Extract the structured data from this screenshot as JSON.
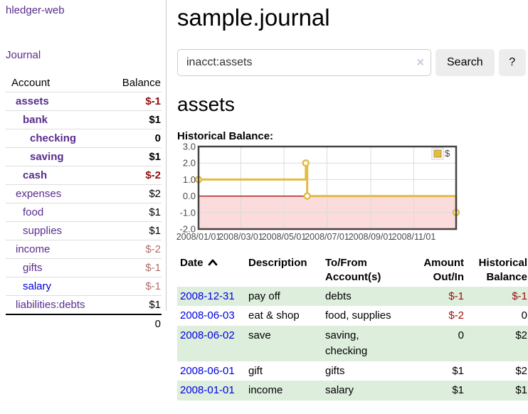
{
  "app": {
    "brand": "hledger-web",
    "nav_journal": "Journal"
  },
  "sidebar": {
    "headers": {
      "account": "Account",
      "balance": "Balance"
    },
    "accounts": [
      {
        "name": "assets",
        "indent": 1,
        "bold": true,
        "balance": "$-1",
        "balance_class": "neg-strong",
        "link_class": "purple"
      },
      {
        "name": "bank",
        "indent": 2,
        "bold": true,
        "balance": "$1",
        "balance_class": "",
        "link_class": "purple"
      },
      {
        "name": "checking",
        "indent": 3,
        "bold": true,
        "balance": "0",
        "balance_class": "",
        "link_class": "purple"
      },
      {
        "name": "saving",
        "indent": 3,
        "bold": true,
        "balance": "$1",
        "balance_class": "",
        "link_class": "purple"
      },
      {
        "name": "cash",
        "indent": 2,
        "bold": true,
        "balance": "$-2",
        "balance_class": "neg-strong",
        "link_class": "purple"
      },
      {
        "name": "expenses",
        "indent": 1,
        "bold": false,
        "balance": "$2",
        "balance_class": "",
        "link_class": "purple"
      },
      {
        "name": "food",
        "indent": 2,
        "bold": false,
        "balance": "$1",
        "balance_class": "",
        "link_class": "purple"
      },
      {
        "name": "supplies",
        "indent": 2,
        "bold": false,
        "balance": "$1",
        "balance_class": "",
        "link_class": "purple"
      },
      {
        "name": "income",
        "indent": 1,
        "bold": false,
        "balance": "$-2",
        "balance_class": "neg-muted",
        "link_class": "purple"
      },
      {
        "name": "gifts",
        "indent": 2,
        "bold": false,
        "balance": "$-1",
        "balance_class": "neg-muted",
        "link_class": "purple"
      },
      {
        "name": "salary",
        "indent": 2,
        "bold": false,
        "balance": "$-1",
        "balance_class": "neg-muted",
        "link_class": "blue"
      },
      {
        "name": "liabilities:debts",
        "indent": 1,
        "bold": false,
        "balance": "$1",
        "balance_class": "",
        "link_class": "purple"
      }
    ],
    "total": "0"
  },
  "header": {
    "title": "sample.journal"
  },
  "search": {
    "value": "inacct:assets",
    "clear_glyph": "×",
    "button_label": "Search",
    "help_label": "?"
  },
  "account_page": {
    "heading": "assets",
    "chart_label": "Historical Balance:"
  },
  "chart_data": {
    "type": "line",
    "step": true,
    "title": "Historical Balance",
    "series": [
      {
        "name": "$",
        "color": "#e3bc45",
        "points": [
          [
            "2008-01-01",
            1
          ],
          [
            "2008-06-01",
            2
          ],
          [
            "2008-06-03",
            0
          ],
          [
            "2008-12-31",
            -1
          ]
        ]
      }
    ],
    "ylim": [
      -2,
      3
    ],
    "ytick_values": [
      3,
      2,
      1,
      0,
      -1,
      -2
    ],
    "ytick_labels": [
      "3.0",
      "2.0",
      "1.0",
      "0.0",
      "-1.0",
      "-2.0"
    ],
    "xtick_labels": [
      "2008/01/01",
      "2008/03/01",
      "2008/05/01",
      "2008/07/01",
      "2008/09/01",
      "2008/11/01"
    ],
    "x_range": [
      "2008-01-01",
      "2008-12-31"
    ],
    "legend": {
      "label": "$",
      "position": "top-right"
    },
    "grid": true,
    "colors": {
      "negative_region": "#fbdbdb",
      "zero_line": "#a00000",
      "grid": "#dcdcdc",
      "border": "#444444",
      "tick_text": "#4a4a4a",
      "marker_fill": "#ffffff"
    }
  },
  "register": {
    "headers": {
      "date": "Date",
      "description": "Description",
      "accounts": "To/From Account(s)",
      "amount": "Amount Out/In",
      "balance": "Historical Balance"
    },
    "sort": {
      "column": "date",
      "direction": "asc"
    },
    "rows": [
      {
        "date": "2008-12-31",
        "description": "pay off",
        "accounts": "debts",
        "amount": "$-1",
        "amount_neg": true,
        "balance": "$-1",
        "balance_neg": true
      },
      {
        "date": "2008-06-03",
        "description": "eat & shop",
        "accounts": "food, supplies",
        "amount": "$-2",
        "amount_neg": true,
        "balance": "0",
        "balance_neg": false
      },
      {
        "date": "2008-06-02",
        "description": "save",
        "accounts": "saving, checking",
        "amount": "0",
        "amount_neg": false,
        "balance": "$2",
        "balance_neg": false
      },
      {
        "date": "2008-06-01",
        "description": "gift",
        "accounts": "gifts",
        "amount": "$1",
        "amount_neg": false,
        "balance": "$2",
        "balance_neg": false
      },
      {
        "date": "2008-01-01",
        "description": "income",
        "accounts": "salary",
        "amount": "$1",
        "amount_neg": false,
        "balance": "$1",
        "balance_neg": false
      }
    ]
  }
}
